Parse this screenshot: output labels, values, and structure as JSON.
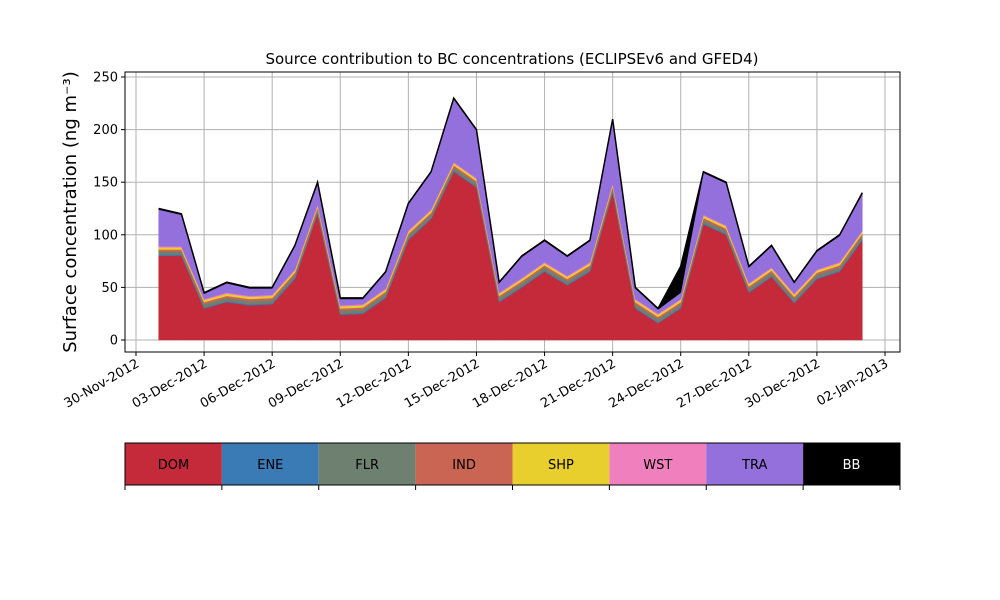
{
  "chart_data": {
    "type": "stacked-area",
    "title": "Source contribution to BC concentrations (ECLIPSEv6 and GFED4)",
    "ylabel": "Surface concentration (ng m⁻³)",
    "x": [
      "2012-12-01",
      "2012-12-02",
      "2012-12-03",
      "2012-12-04",
      "2012-12-05",
      "2012-12-06",
      "2012-12-07",
      "2012-12-08",
      "2012-12-09",
      "2012-12-10",
      "2012-12-11",
      "2012-12-12",
      "2012-12-13",
      "2012-12-14",
      "2012-12-15",
      "2012-12-16",
      "2012-12-17",
      "2012-12-18",
      "2012-12-19",
      "2012-12-20",
      "2012-12-21",
      "2012-12-22",
      "2012-12-23",
      "2012-12-24",
      "2012-12-25",
      "2012-12-26",
      "2012-12-27",
      "2012-12-28",
      "2012-12-29",
      "2012-12-30",
      "2012-12-31",
      "2013-01-01"
    ],
    "series": [
      {
        "name": "DOM",
        "color": "#c52a3a",
        "values": [
          80,
          80,
          30,
          36,
          33,
          34,
          58,
          120,
          24,
          25,
          40,
          95,
          115,
          160,
          145,
          36,
          50,
          65,
          52,
          65,
          140,
          30,
          16,
          30,
          110,
          100,
          45,
          60,
          35,
          58,
          65,
          95
        ]
      },
      {
        "name": "ENE",
        "color": "#3a7ab5",
        "values": [
          1,
          1,
          1,
          1,
          1,
          1,
          1,
          1,
          1,
          1,
          1,
          1,
          1,
          1,
          1,
          1,
          1,
          1,
          1,
          1,
          1,
          1,
          1,
          1,
          1,
          1,
          1,
          1,
          1,
          1,
          1,
          1
        ]
      },
      {
        "name": "FLR",
        "color": "#6e8070",
        "values": [
          3,
          3,
          3,
          3,
          3,
          3,
          3,
          3,
          3,
          3,
          3,
          3,
          3,
          3,
          3,
          3,
          3,
          3,
          3,
          3,
          3,
          3,
          3,
          3,
          3,
          3,
          3,
          3,
          3,
          3,
          3,
          3
        ]
      },
      {
        "name": "IND",
        "color": "#c96552",
        "values": [
          2,
          2,
          2,
          2,
          2,
          2,
          2,
          2,
          2,
          2,
          2,
          2,
          2,
          2,
          2,
          2,
          2,
          2,
          2,
          2,
          2,
          2,
          2,
          2,
          2,
          2,
          2,
          2,
          2,
          2,
          2,
          2
        ]
      },
      {
        "name": "SHP",
        "color": "#e8cf2e",
        "values": [
          2,
          2,
          2,
          2,
          2,
          2,
          2,
          2,
          2,
          2,
          2,
          2,
          2,
          2,
          2,
          2,
          2,
          2,
          2,
          2,
          2,
          2,
          2,
          2,
          2,
          2,
          2,
          2,
          2,
          2,
          2,
          2
        ]
      },
      {
        "name": "WST",
        "color": "#f07fbd",
        "values": [
          1,
          1,
          1,
          1,
          1,
          1,
          1,
          1,
          1,
          1,
          1,
          1,
          1,
          1,
          1,
          1,
          1,
          1,
          1,
          1,
          1,
          1,
          1,
          1,
          1,
          1,
          1,
          1,
          1,
          1,
          1,
          1
        ]
      },
      {
        "name": "TRA",
        "color": "#9370db",
        "values": [
          35,
          30,
          5,
          9,
          7,
          6,
          22,
          20,
          6,
          5,
          15,
          25,
          35,
          60,
          45,
          9,
          20,
          20,
          18,
          20,
          60,
          10,
          4,
          6,
          40,
          40,
          15,
          20,
          10,
          17,
          25,
          35
        ]
      },
      {
        "name": "BB",
        "color": "#000000",
        "values": [
          1,
          1,
          1,
          1,
          1,
          1,
          1,
          1,
          1,
          1,
          1,
          1,
          1,
          1,
          1,
          1,
          1,
          1,
          1,
          1,
          1,
          1,
          1,
          25,
          1,
          1,
          1,
          1,
          1,
          1,
          1,
          1
        ]
      }
    ],
    "xlim": [
      "2012-11-30",
      "2013-01-02"
    ],
    "xticks": [
      {
        "value": "2012-11-30",
        "label": "30-Nov-2012"
      },
      {
        "value": "2012-12-03",
        "label": "03-Dec-2012"
      },
      {
        "value": "2012-12-06",
        "label": "06-Dec-2012"
      },
      {
        "value": "2012-12-09",
        "label": "09-Dec-2012"
      },
      {
        "value": "2012-12-12",
        "label": "12-Dec-2012"
      },
      {
        "value": "2012-12-15",
        "label": "15-Dec-2012"
      },
      {
        "value": "2012-12-18",
        "label": "18-Dec-2012"
      },
      {
        "value": "2012-12-21",
        "label": "21-Dec-2012"
      },
      {
        "value": "2012-12-24",
        "label": "24-Dec-2012"
      },
      {
        "value": "2012-12-27",
        "label": "27-Dec-2012"
      },
      {
        "value": "2012-12-30",
        "label": "30-Dec-2012"
      },
      {
        "value": "2013-01-02",
        "label": "02-Jan-2013"
      }
    ],
    "ylim": [
      0,
      250
    ],
    "yticks": [
      0,
      50,
      100,
      150,
      200,
      250
    ],
    "grid": true
  }
}
